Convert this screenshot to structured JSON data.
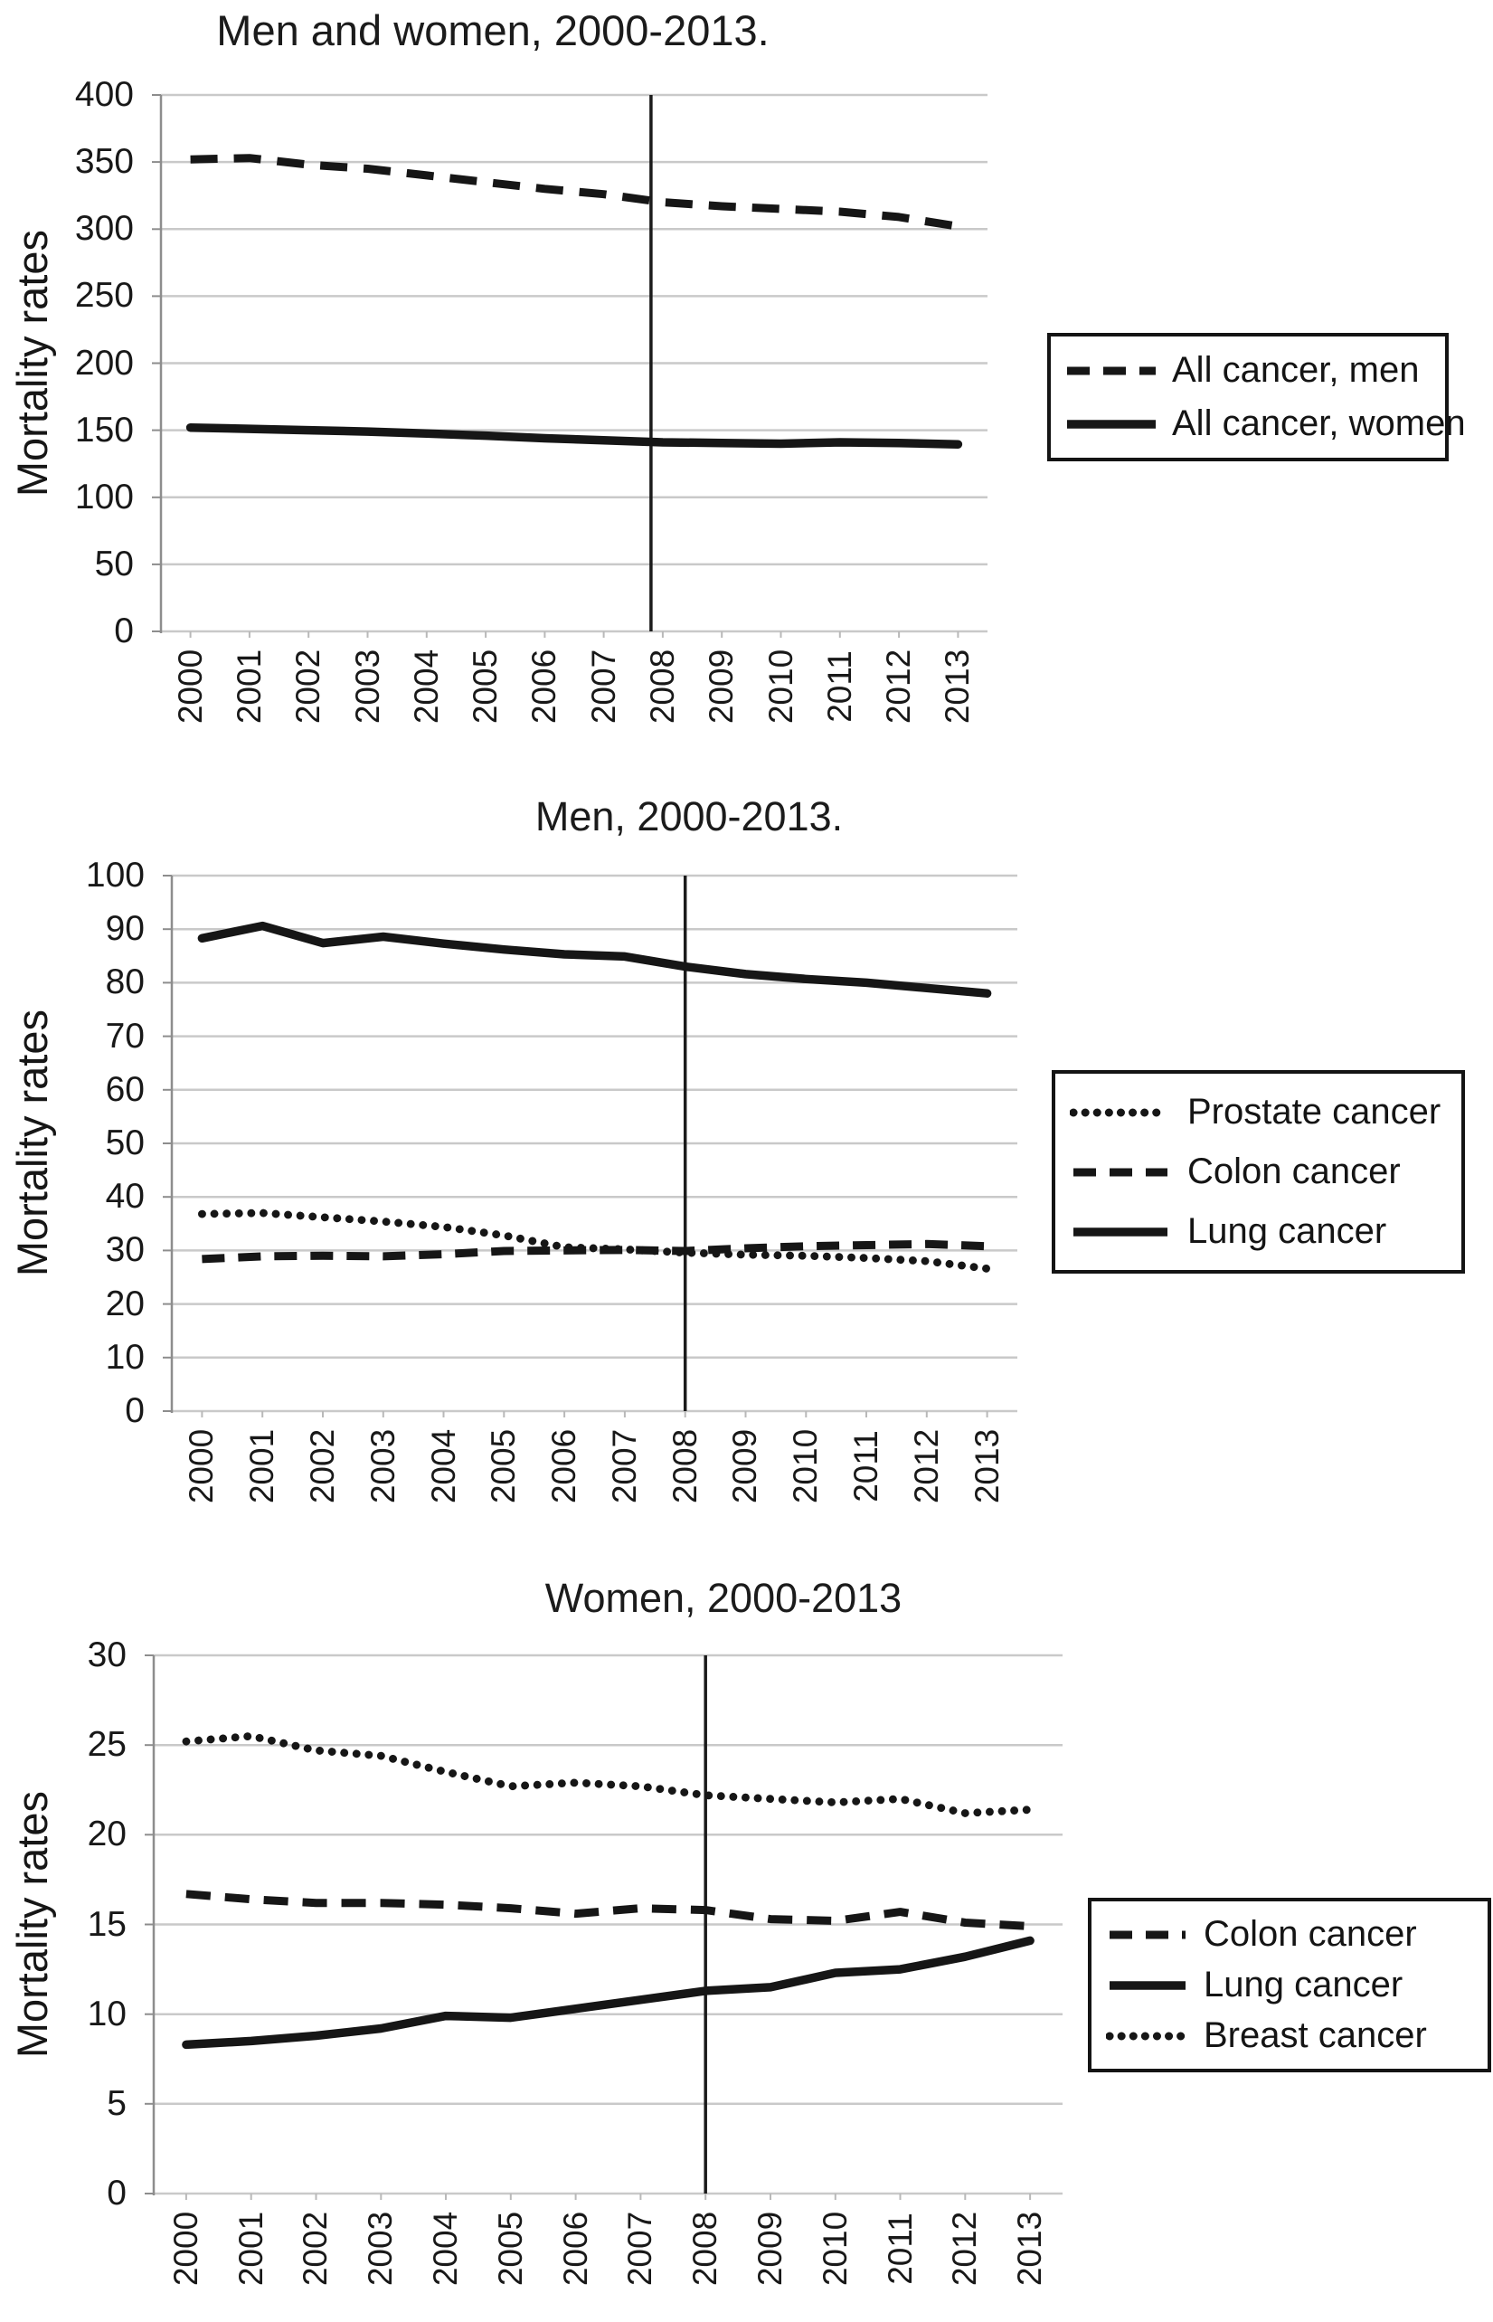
{
  "page": {
    "background": "#ffffff",
    "line_color": "#161616",
    "grid_color": "#c9c9c9",
    "event_line_year": "2008"
  },
  "chart_data": [
    {
      "type": "line",
      "title": "Men and women, 2000-2013.",
      "ylabel": "Mortality rates",
      "xlabel": "",
      "categories": [
        "2000",
        "2001",
        "2002",
        "2003",
        "2004",
        "2005",
        "2006",
        "2007",
        "2008",
        "2009",
        "2010",
        "2011",
        "2012",
        "2013"
      ],
      "ylim": [
        0,
        400
      ],
      "ytick_step": 50,
      "grid": "horizontal",
      "legend_position": "right",
      "vline_at_index": 7.8,
      "series": [
        {
          "name": "All cancer, men",
          "style": "dashed",
          "values": [
            352,
            353,
            348,
            345,
            340,
            335,
            330,
            326,
            320,
            317,
            315,
            313,
            309,
            302
          ]
        },
        {
          "name": "All cancer, women",
          "style": "solid",
          "values": [
            152,
            151,
            150,
            149,
            147.5,
            146,
            144,
            142.5,
            141,
            140.5,
            140,
            141,
            140.5,
            139.5
          ]
        }
      ]
    },
    {
      "type": "line",
      "title": "Men, 2000-2013.",
      "ylabel": "Mortality rates",
      "xlabel": "",
      "categories": [
        "2000",
        "2001",
        "2002",
        "2003",
        "2004",
        "2005",
        "2006",
        "2007",
        "2008",
        "2009",
        "2010",
        "2011",
        "2012",
        "2013"
      ],
      "ylim": [
        0,
        100
      ],
      "ytick_step": 10,
      "grid": "horizontal",
      "legend_position": "right",
      "vline_at_index": 8,
      "series": [
        {
          "name": "Prostate cancer",
          "style": "dotted",
          "values": [
            36.8,
            37,
            36.2,
            35.4,
            34.4,
            32.8,
            30.6,
            30.2,
            29.6,
            29.2,
            29,
            28.6,
            28,
            26.6
          ]
        },
        {
          "name": "Colon cancer",
          "style": "dashed",
          "values": [
            28.4,
            28.9,
            29,
            28.9,
            29.3,
            29.9,
            30,
            30.1,
            29.9,
            30.4,
            30.8,
            31,
            31.2,
            30.8
          ]
        },
        {
          "name": "Lung cancer",
          "style": "solid",
          "values": [
            88.3,
            90.6,
            87.4,
            88.6,
            87.3,
            86.2,
            85.3,
            84.9,
            83,
            81.6,
            80.7,
            80,
            79,
            78
          ]
        }
      ]
    },
    {
      "type": "line",
      "title": "Women, 2000-2013",
      "ylabel": "Mortality rates",
      "xlabel": "",
      "categories": [
        "2000",
        "2001",
        "2002",
        "2003",
        "2004",
        "2005",
        "2006",
        "2007",
        "2008",
        "2009",
        "2010",
        "2011",
        "2012",
        "2013"
      ],
      "ylim": [
        0,
        30
      ],
      "ytick_step": 5,
      "grid": "horizontal",
      "legend_position": "right",
      "vline_at_index": 8,
      "series": [
        {
          "name": "Colon cancer",
          "style": "dashed",
          "values": [
            16.7,
            16.4,
            16.2,
            16.2,
            16.1,
            15.9,
            15.6,
            15.9,
            15.8,
            15.3,
            15.2,
            15.7,
            15.1,
            14.9
          ]
        },
        {
          "name": "Lung cancer",
          "style": "solid",
          "values": [
            8.3,
            8.5,
            8.8,
            9.2,
            9.9,
            9.8,
            10.3,
            10.8,
            11.3,
            11.5,
            12.3,
            12.5,
            13.2,
            14.1
          ]
        },
        {
          "name": "Breast cancer",
          "style": "dotted",
          "values": [
            25.2,
            25.5,
            24.7,
            24.4,
            23.5,
            22.7,
            22.9,
            22.7,
            22.2,
            22,
            21.8,
            22,
            21.2,
            21.4
          ]
        }
      ]
    }
  ]
}
